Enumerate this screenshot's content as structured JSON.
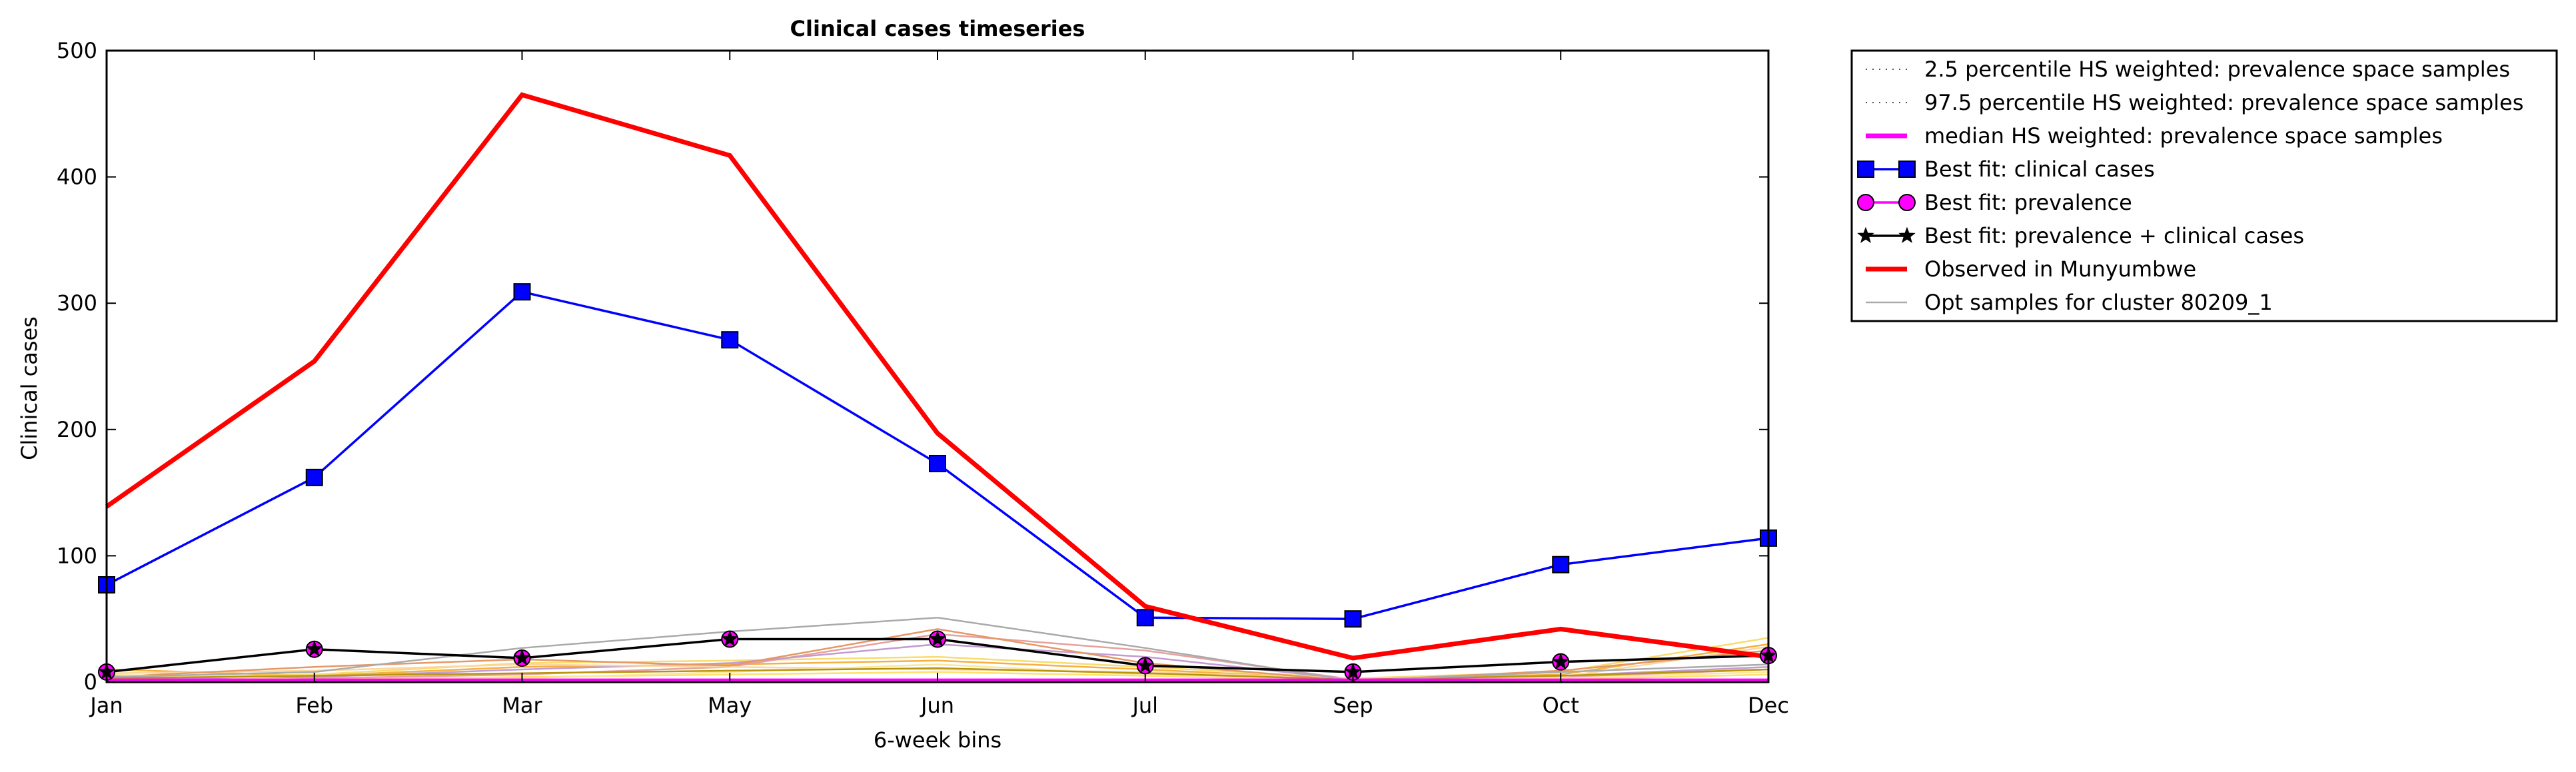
{
  "chart_data": {
    "type": "line",
    "title": "Clinical cases timeseries",
    "xlabel": "6-week bins",
    "ylabel": "Clinical cases",
    "categories": [
      "Jan",
      "Feb",
      "Mar",
      "May",
      "Jun",
      "Jul",
      "Sep",
      "Oct",
      "Dec"
    ],
    "ylim": [
      0,
      500
    ],
    "yticks": [
      0,
      100,
      200,
      300,
      400,
      500
    ],
    "grid": false,
    "legend_position": "outside-right-top",
    "series": [
      {
        "name": "2.5 percentile HS weighted: prevalence space samples",
        "style": "dotted",
        "color": "#555555",
        "values": [
          0,
          0,
          0,
          0,
          0,
          0,
          0,
          0,
          0
        ]
      },
      {
        "name": "97.5 percentile HS weighted: prevalence space samples",
        "style": "dotted",
        "color": "#555555",
        "values": [
          0,
          0,
          0,
          0,
          0,
          0,
          0,
          0,
          0
        ]
      },
      {
        "name": "median HS weighted: prevalence space samples",
        "style": "solid-thick",
        "color": "#ff00ff",
        "values": [
          1,
          1,
          1,
          1,
          1,
          1,
          1,
          1,
          1
        ]
      },
      {
        "name": "Best fit: clinical cases",
        "style": "line-square",
        "color": "#0000ff",
        "values": [
          77,
          162,
          309,
          271,
          173,
          51,
          50,
          93,
          114
        ]
      },
      {
        "name": "Best fit: prevalence",
        "style": "line-circle",
        "color": "#ff00ff",
        "values": [
          8,
          26,
          19,
          34,
          34,
          13,
          8,
          16,
          21
        ]
      },
      {
        "name": "Best fit: prevalence + clinical cases",
        "style": "line-star",
        "color": "#000000",
        "values": [
          8,
          26,
          19,
          34,
          34,
          13,
          8,
          16,
          21
        ]
      },
      {
        "name": "Observed in Munyumbwe",
        "style": "solid-thick",
        "color": "#ff0000",
        "values": [
          139,
          254,
          465,
          417,
          197,
          60,
          19,
          42,
          20
        ]
      },
      {
        "name": "Opt samples for cluster 80209_1",
        "style": "solid-thin",
        "color": "#aaaaaa",
        "values": [
          4,
          8,
          27,
          40,
          51,
          27,
          1,
          8,
          14
        ]
      }
    ],
    "sample_lines": [
      {
        "color": "#f5b041",
        "values": [
          10,
          5,
          12,
          14,
          17,
          10,
          2,
          6,
          30
        ]
      },
      {
        "color": "#f7dc6f",
        "values": [
          3,
          6,
          15,
          17,
          20,
          12,
          3,
          8,
          35
        ]
      },
      {
        "color": "#e6a0a0",
        "values": [
          5,
          3,
          6,
          12,
          38,
          25,
          2,
          4,
          10
        ]
      },
      {
        "color": "#c39bd3",
        "values": [
          2,
          4,
          10,
          15,
          30,
          20,
          2,
          5,
          12
        ]
      },
      {
        "color": "#fad7a0",
        "values": [
          7,
          9,
          14,
          12,
          10,
          8,
          3,
          4,
          28
        ]
      },
      {
        "color": "#ffe066",
        "values": [
          1,
          2,
          4,
          6,
          8,
          5,
          1,
          2,
          6
        ]
      },
      {
        "color": "#e59866",
        "values": [
          4,
          12,
          18,
          13,
          42,
          15,
          1,
          9,
          25
        ]
      },
      {
        "color": "#f9e79f",
        "values": [
          6,
          2,
          3,
          8,
          14,
          6,
          1,
          3,
          8
        ]
      },
      {
        "color": "#b7950b",
        "values": [
          3,
          5,
          7,
          9,
          11,
          7,
          2,
          5,
          10
        ]
      }
    ]
  }
}
